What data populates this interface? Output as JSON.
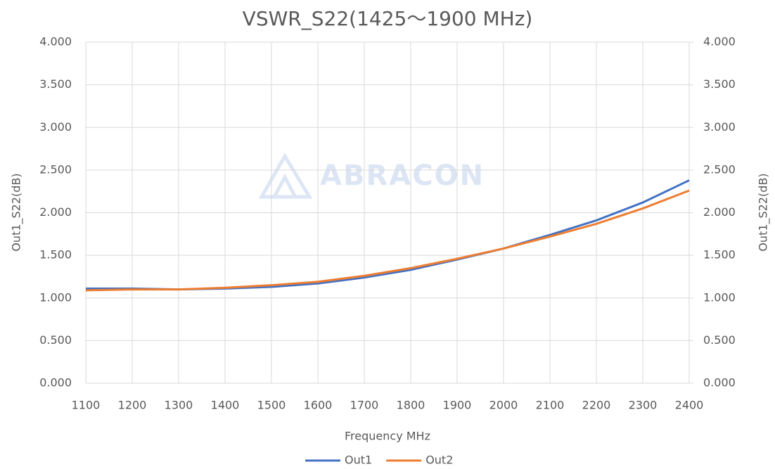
{
  "chart_data": {
    "type": "line",
    "title": "VSWR_S22(1425～1900 MHz)",
    "xlabel": "Frequency MHz",
    "ylabel": "Out1_S22(dB)",
    "y2label": "Out1_S22(dB)",
    "watermark": "ABRACON",
    "x": [
      1100,
      1200,
      1300,
      1400,
      1500,
      1600,
      1700,
      1800,
      1900,
      2000,
      2100,
      2200,
      2300,
      2400
    ],
    "series": [
      {
        "name": "Out1",
        "color": "#4472c4",
        "values": [
          1.11,
          1.11,
          1.1,
          1.11,
          1.13,
          1.17,
          1.24,
          1.33,
          1.45,
          1.58,
          1.74,
          1.91,
          2.12,
          2.38
        ]
      },
      {
        "name": "Out2",
        "color": "#ed7d31",
        "values": [
          1.09,
          1.1,
          1.1,
          1.12,
          1.15,
          1.19,
          1.26,
          1.35,
          1.46,
          1.58,
          1.72,
          1.87,
          2.05,
          2.26
        ]
      }
    ],
    "xlim": [
      1100,
      2400
    ],
    "xticks": [
      1100,
      1200,
      1300,
      1400,
      1500,
      1600,
      1700,
      1800,
      1900,
      2000,
      2100,
      2200,
      2300,
      2400
    ],
    "ylim": [
      0,
      4
    ],
    "yticks": [
      {
        "value": 0,
        "label": "0.000"
      },
      {
        "value": 0.5,
        "label": "0.500"
      },
      {
        "value": 1,
        "label": "1.000"
      },
      {
        "value": 1.5,
        "label": "1.500"
      },
      {
        "value": 2,
        "label": "2.000"
      },
      {
        "value": 2.5,
        "label": "2.500"
      },
      {
        "value": 3,
        "label": "3.000"
      },
      {
        "value": 3.5,
        "label": "3.500"
      },
      {
        "value": 4,
        "label": "4.000"
      }
    ],
    "y2lim": [
      0,
      4
    ],
    "y2ticks": [
      {
        "value": 0,
        "label": "0.000"
      },
      {
        "value": 0.5,
        "label": "0.500"
      },
      {
        "value": 1,
        "label": "1.000"
      },
      {
        "value": 1.5,
        "label": "1.500"
      },
      {
        "value": 2,
        "label": "2.000"
      },
      {
        "value": 2.5,
        "label": "2.500"
      },
      {
        "value": 3,
        "label": "3.000"
      },
      {
        "value": 3.5,
        "label": "3.500"
      },
      {
        "value": 4,
        "label": "4.000"
      }
    ],
    "grid": true,
    "legend": "bottom"
  }
}
